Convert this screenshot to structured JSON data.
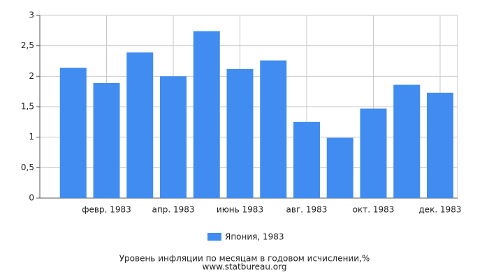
{
  "chart_data": {
    "type": "bar",
    "categories": [
      null,
      "февр. 1983",
      null,
      "апр. 1983",
      null,
      "июнь 1983",
      null,
      "авг. 1983",
      null,
      "окт. 1983",
      null,
      "дек. 1983"
    ],
    "series": [
      {
        "name": "Япония, 1983",
        "color": "#418cf0",
        "values": [
          2.14,
          1.89,
          2.39,
          2.0,
          2.74,
          2.12,
          2.26,
          1.25,
          0.99,
          1.47,
          1.86,
          1.73
        ]
      }
    ],
    "ylim": [
      0,
      3
    ],
    "yticks": [
      0,
      {
        "value": 0.5,
        "label": "0,5"
      },
      1,
      {
        "value": 1.5,
        "label": "1,5"
      },
      2,
      {
        "value": 2.5,
        "label": "2,5"
      },
      3
    ],
    "grid": true,
    "caption": [
      "Уровень инфляции по месяцам в годовом исчислении,%",
      "www.statbureau.org"
    ]
  }
}
